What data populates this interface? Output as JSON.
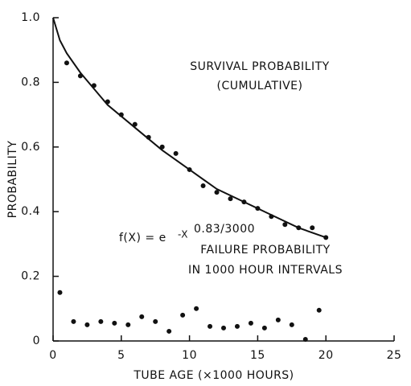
{
  "chart_data": {
    "type": "scatter",
    "xlabel": "TUBE AGE (×1000 HOURS)",
    "ylabel": "PROBABILITY",
    "xlim": [
      0,
      25
    ],
    "ylim": [
      0,
      1
    ],
    "xticks": [
      0,
      5,
      10,
      15,
      20,
      25
    ],
    "yticks": [
      0,
      0.2,
      0.4,
      0.6,
      0.8,
      {
        "value": 1,
        "label": "1.0"
      }
    ],
    "color": "#111111",
    "annotations": {
      "survival": [
        "SURVIVAL PROBABILITY",
        "(CUMULATIVE)"
      ],
      "failure": [
        "FAILURE PROBABILITY",
        "IN 1000 HOUR INTERVALS"
      ],
      "formula": {
        "base": "f(X) = e",
        "exponent": "-X",
        "power": "0.83/3000"
      }
    },
    "series": [
      {
        "name": "survival",
        "x": [
          1,
          2,
          3,
          4,
          5,
          6,
          7,
          8,
          9,
          10,
          11,
          12,
          13,
          14,
          15,
          16,
          17,
          18,
          19,
          20
        ],
        "values": [
          0.86,
          0.82,
          0.79,
          0.74,
          0.7,
          0.67,
          0.63,
          0.6,
          0.58,
          0.53,
          0.48,
          0.46,
          0.44,
          0.43,
          0.41,
          0.385,
          0.36,
          0.35,
          0.35,
          0.32
        ]
      },
      {
        "name": "failure",
        "x": [
          0.5,
          1.5,
          2.5,
          3.5,
          4.5,
          5.5,
          6.5,
          7.5,
          8.5,
          9.5,
          10.5,
          11.5,
          12.5,
          13.5,
          14.5,
          15.5,
          16.5,
          17.5,
          18.5,
          19.5
        ],
        "values": [
          0.15,
          0.06,
          0.05,
          0.06,
          0.055,
          0.05,
          0.075,
          0.06,
          0.03,
          0.08,
          0.1,
          0.045,
          0.04,
          0.045,
          0.055,
          0.04,
          0.065,
          0.05,
          0.005,
          0.095
        ]
      },
      {
        "name": "fit",
        "style": "line",
        "x": [
          0,
          0.5,
          1,
          2,
          4,
          6,
          8,
          10,
          12,
          14,
          16,
          18,
          20
        ],
        "values": [
          1.0,
          0.93,
          0.89,
          0.83,
          0.73,
          0.66,
          0.59,
          0.53,
          0.47,
          0.43,
          0.39,
          0.35,
          0.32
        ]
      }
    ]
  }
}
